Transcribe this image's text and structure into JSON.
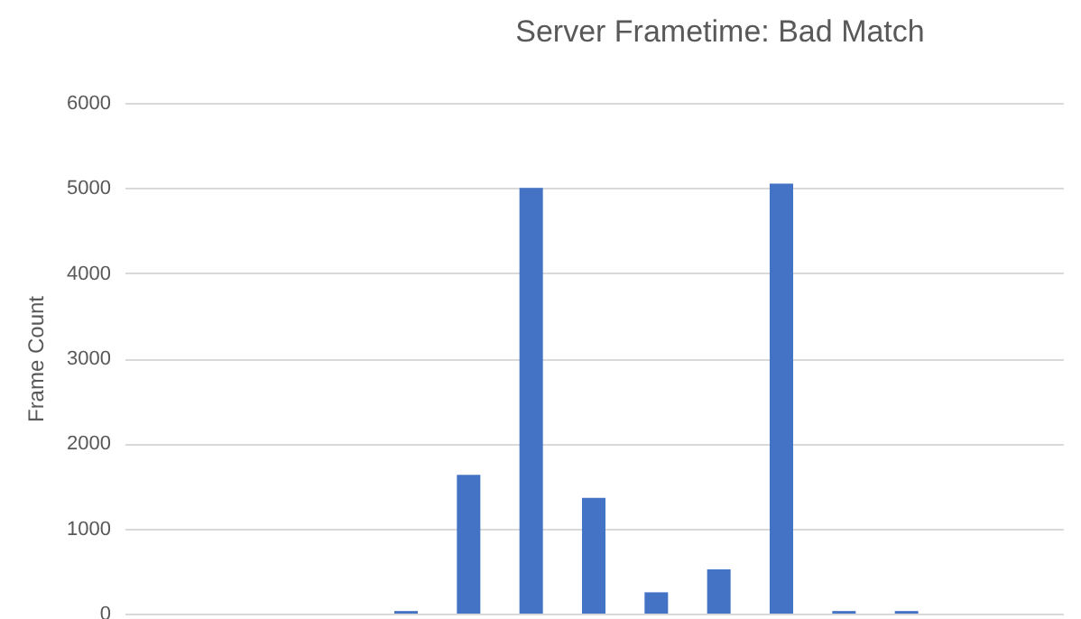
{
  "chart_data": {
    "type": "bar",
    "title": "Server Frametime: Bad Match",
    "ylabel": "Frame Count",
    "categories": [
      null,
      null,
      null,
      null,
      null,
      null,
      null,
      null,
      null,
      null,
      null,
      null,
      null,
      null,
      null
    ],
    "values": [
      0,
      0,
      0,
      0,
      30,
      1630,
      5000,
      1360,
      250,
      520,
      5050,
      30,
      30,
      0,
      0
    ],
    "color": "#4472c4",
    "ylim": [
      0,
      6000
    ],
    "yticks": [
      0,
      1000,
      2000,
      3000,
      4000,
      5000,
      6000
    ],
    "grid": "y"
  }
}
